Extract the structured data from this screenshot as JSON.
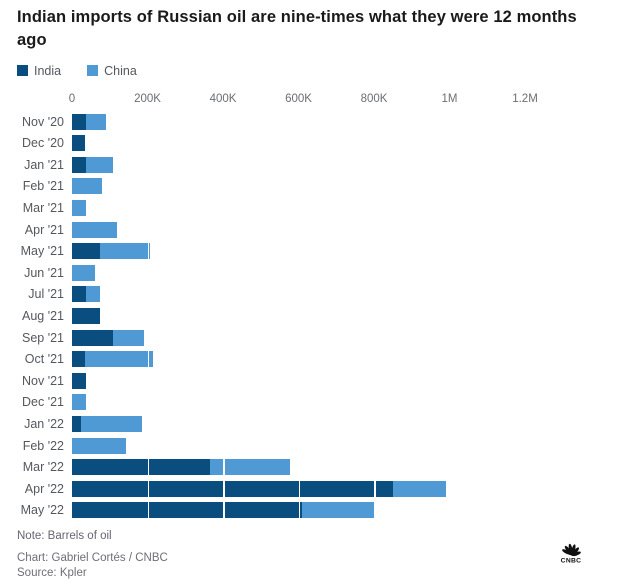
{
  "title": "Indian imports of Russian oil are nine-times what they were 12 months ago",
  "legend": [
    {
      "label": "India",
      "color": "#0a4e80"
    },
    {
      "label": "China",
      "color": "#4f9ad5"
    }
  ],
  "chart_data": {
    "type": "bar",
    "orientation": "horizontal",
    "stacked": true,
    "title": "Indian imports of Russian oil are nine-times what they were 12 months ago",
    "xlabel": "",
    "ylabel": "",
    "unit": "barrels of oil",
    "xlim": [
      0,
      1200000
    ],
    "grid": "vertical-white-over-bars",
    "legend_position": "top-left",
    "ticks": [
      {
        "label": "0",
        "value": 0
      },
      {
        "label": "200K",
        "value": 200000
      },
      {
        "label": "400K",
        "value": 400000
      },
      {
        "label": "600K",
        "value": 600000
      },
      {
        "label": "800K",
        "value": 800000
      },
      {
        "label": "1M",
        "value": 1000000
      },
      {
        "label": "1.2M",
        "value": 1200000
      }
    ],
    "categories": [
      "Nov '20",
      "Dec '20",
      "Jan '21",
      "Feb '21",
      "Mar '21",
      "Apr '21",
      "May '21",
      "Jun '21",
      "Jul '21",
      "Aug '21",
      "Sep '21",
      "Oct '21",
      "Nov '21",
      "Dec '21",
      "Jan '22",
      "Feb '22",
      "Mar '22",
      "Apr '22",
      "May '22"
    ],
    "series": [
      {
        "name": "India",
        "color": "#0a4e80",
        "values": [
          37000,
          35000,
          37000,
          0,
          0,
          0,
          75000,
          0,
          37000,
          74000,
          109000,
          35000,
          37000,
          0,
          25000,
          0,
          365000,
          850000,
          610000
        ]
      },
      {
        "name": "China",
        "color": "#4f9ad5",
        "values": [
          53000,
          0,
          72000,
          79000,
          36000,
          119000,
          131000,
          62000,
          37000,
          0,
          81000,
          180000,
          0,
          38000,
          160000,
          143000,
          212000,
          140000,
          196000
        ]
      }
    ]
  },
  "footer": {
    "note": "Note: Barrels of oil",
    "credit": "Chart: Gabriel Cortés / CNBC",
    "source": "Source: Kpler",
    "logo_text": "CNBC"
  }
}
